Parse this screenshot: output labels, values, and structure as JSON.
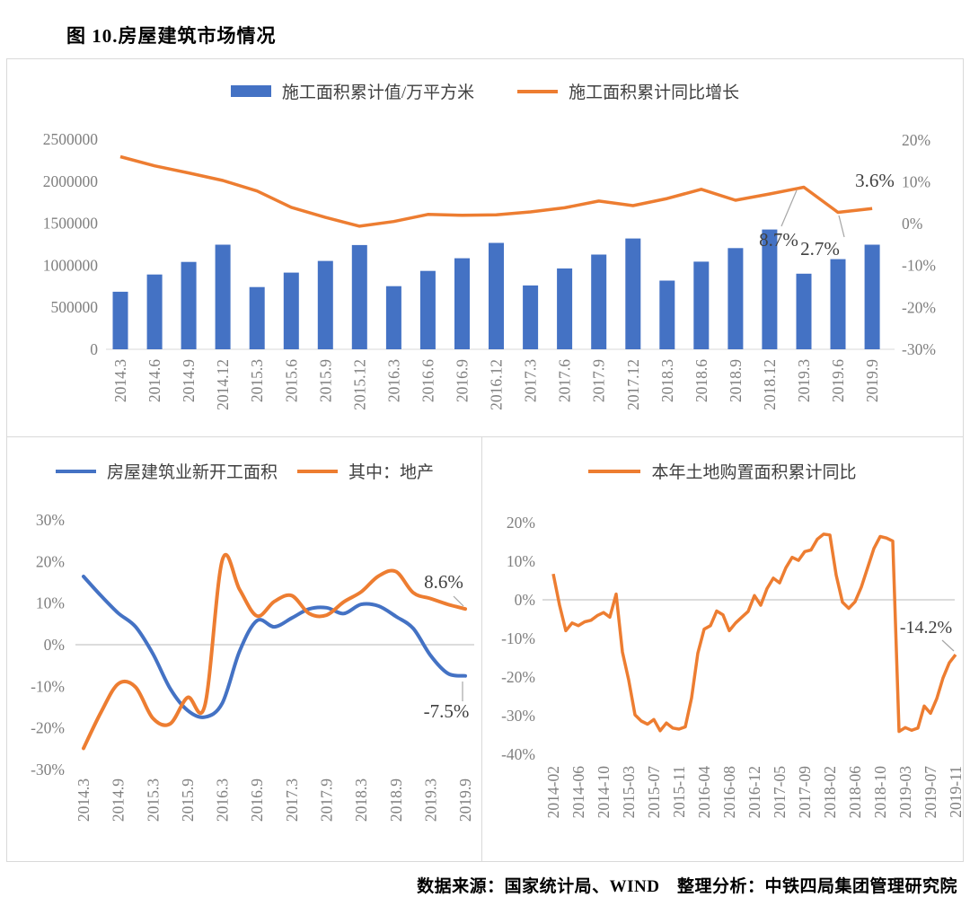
{
  "page": {
    "title": "图 10.房屋建筑市场情况",
    "footer": "数据来源：国家统计局、WIND　整理分析：中铁四局集团管理研究院"
  },
  "colors": {
    "bar_blue": "#4472C4",
    "line_orange": "#ED7D31",
    "line_blue": "#4472C4",
    "axis_text": "#7F7F7F",
    "grid": "#D9D9D9",
    "zero_line": "#C8C8C8",
    "legend_text": "#404040",
    "annotation_text": "#404040",
    "leader": "#A6A6A6"
  },
  "chart_data": [
    {
      "type": "bar",
      "title": "施工面积",
      "legend": [
        {
          "label": "施工面积累计值/万平方米",
          "swatch": "bar",
          "color_key": "bar_blue"
        },
        {
          "label": "施工面积累计同比增长",
          "swatch": "line",
          "color_key": "line_orange"
        }
      ],
      "categories": [
        "2014.3",
        "2014.6",
        "2014.9",
        "2014.12",
        "2015.3",
        "2015.6",
        "2015.9",
        "2015.12",
        "2016.3",
        "2016.6",
        "2016.9",
        "2016.12",
        "2017.3",
        "2017.6",
        "2017.9",
        "2017.12",
        "2018.3",
        "2018.6",
        "2018.9",
        "2018.12",
        "2019.3",
        "2019.6",
        "2019.9"
      ],
      "bar_series": {
        "name": "施工面积累计值/万平方米",
        "axis": "left",
        "values": [
          685000,
          890000,
          1040000,
          1245000,
          740000,
          912000,
          1051000,
          1240000,
          751000,
          933000,
          1083000,
          1266000,
          760000,
          962000,
          1127000,
          1318000,
          817000,
          1043000,
          1204000,
          1425000,
          900000,
          1073000,
          1245000
        ]
      },
      "line_series": {
        "name": "施工面积累计同比增长",
        "axis": "right",
        "values": [
          16.0,
          13.8,
          12.1,
          10.3,
          7.8,
          3.9,
          1.5,
          -0.6,
          0.5,
          2.2,
          2.0,
          2.1,
          2.8,
          3.8,
          5.4,
          4.3,
          6.0,
          8.2,
          5.6,
          7.1,
          8.7,
          2.7,
          3.6
        ]
      },
      "left_axis": {
        "range": [
          0,
          2500000
        ],
        "tick_values": [
          0,
          500000,
          1000000,
          1500000,
          2000000,
          2500000
        ],
        "tick_labels": [
          "0",
          "500000",
          "1000000",
          "1500000",
          "2000000",
          "2500000"
        ]
      },
      "right_axis": {
        "range": [
          -30,
          20
        ],
        "tick_values": [
          20,
          10,
          0,
          -10,
          -20,
          -30
        ],
        "tick_labels": [
          "20%",
          "10%",
          "0%",
          "-10%",
          "-20%",
          "-30%"
        ]
      },
      "annotations": [
        {
          "text": "8.7%"
        },
        {
          "text": "2.7%"
        },
        {
          "text": "3.6%"
        }
      ]
    },
    {
      "type": "line",
      "title": "新开工面积同比",
      "legend": [
        {
          "label": "房屋建筑业新开工面积",
          "swatch": "line",
          "color_key": "line_blue"
        },
        {
          "label": "其中：地产",
          "swatch": "line",
          "color_key": "line_orange"
        }
      ],
      "x": [
        "2014.3",
        "2014.6",
        "2014.9",
        "2014.12",
        "2015.3",
        "2015.6",
        "2015.9",
        "2015.12",
        "2016.3",
        "2016.6",
        "2016.9",
        "2016.12",
        "2017.3",
        "2017.6",
        "2017.9",
        "2017.12",
        "2018.3",
        "2018.6",
        "2018.9",
        "2018.12",
        "2019.3",
        "2019.6",
        "2019.9"
      ],
      "label_indices": [
        0,
        2,
        4,
        6,
        8,
        10,
        12,
        14,
        16,
        18,
        20,
        22
      ],
      "x_labels": [
        "2014.3",
        "2014.9",
        "2015.3",
        "2015.9",
        "2016.3",
        "2016.9",
        "2017.3",
        "2017.9",
        "2018.3",
        "2018.9",
        "2019.3",
        "2019.9"
      ],
      "series": [
        {
          "name": "房屋建筑业新开工面积",
          "color_key": "line_blue",
          "values": [
            16.4,
            11.8,
            7.6,
            4.3,
            -2.2,
            -10.6,
            -15.8,
            -17.4,
            -14.0,
            -1.5,
            5.8,
            4.3,
            6.4,
            8.6,
            8.9,
            7.5,
            9.7,
            9.3,
            6.8,
            3.9,
            -2.6,
            -6.9,
            -7.5
          ]
        },
        {
          "name": "其中：地产",
          "color_key": "line_orange",
          "values": [
            -24.9,
            -16.3,
            -9.4,
            -10.2,
            -17.7,
            -19.0,
            -12.7,
            -14.5,
            20.4,
            13.2,
            6.9,
            10.4,
            11.8,
            7.5,
            7.1,
            10.3,
            12.7,
            16.5,
            17.6,
            12.5,
            11.1,
            9.7,
            8.6
          ]
        }
      ],
      "y_axis": {
        "range": [
          -30,
          30
        ],
        "tick_values": [
          30,
          20,
          10,
          0,
          -10,
          -20,
          -30
        ],
        "tick_labels": [
          "30%",
          "20%",
          "10%",
          "0%",
          "-10%",
          "-20%",
          "-30%"
        ]
      },
      "annotations": [
        {
          "text": "8.6%"
        },
        {
          "text": "-7.5%"
        }
      ]
    },
    {
      "type": "line",
      "title": "本年土地购置面积累计同比",
      "legend": [
        {
          "label": "本年土地购置面积累计同比",
          "swatch": "line",
          "color_key": "line_orange"
        }
      ],
      "label_indices": [
        0,
        4,
        8,
        12,
        16,
        20,
        24,
        28,
        32,
        36,
        40,
        44,
        48,
        52,
        56,
        60,
        64
      ],
      "x_labels": [
        "2014-02",
        "2014-06",
        "2014-10",
        "2015-03",
        "2015-07",
        "2015-11",
        "2016-04",
        "2016-08",
        "2016-12",
        "2017-05",
        "2017-09",
        "2018-02",
        "2018-06",
        "2018-10",
        "2019-03",
        "2019-07",
        "2019-11"
      ],
      "series": [
        {
          "name": "本年土地购置面积累计同比",
          "color_key": "line_orange",
          "values": [
            6.7,
            -1.4,
            -8.0,
            -6.0,
            -6.7,
            -5.7,
            -5.3,
            -4.1,
            -3.3,
            -4.5,
            1.5,
            -13.5,
            -20.8,
            -29.8,
            -31.4,
            -32.2,
            -31.0,
            -33.9,
            -31.9,
            -33.2,
            -33.5,
            -32.9,
            -25.4,
            -13.8,
            -7.6,
            -6.7,
            -2.9,
            -3.9,
            -8.0,
            -6.0,
            -4.5,
            -3.0,
            1.1,
            -1.4,
            2.9,
            5.6,
            4.4,
            8.3,
            11.0,
            10.2,
            12.5,
            12.9,
            15.7,
            17.0,
            16.8,
            6.4,
            -0.6,
            -2.2,
            -0.5,
            3.3,
            8.3,
            13.3,
            16.4,
            16.0,
            15.2,
            -34.1,
            -33.1,
            -33.8,
            -33.2,
            -27.5,
            -29.4,
            -25.6,
            -20.2,
            -16.3,
            -14.2
          ]
        }
      ],
      "y_axis": {
        "range": [
          -40,
          20
        ],
        "tick_values": [
          20,
          10,
          0,
          -10,
          -20,
          -30,
          -40
        ],
        "tick_labels": [
          "20%",
          "10%",
          "0%",
          "-10%",
          "-20%",
          "-30%",
          "-40%"
        ]
      },
      "annotations": [
        {
          "text": "-14.2%"
        }
      ]
    }
  ]
}
